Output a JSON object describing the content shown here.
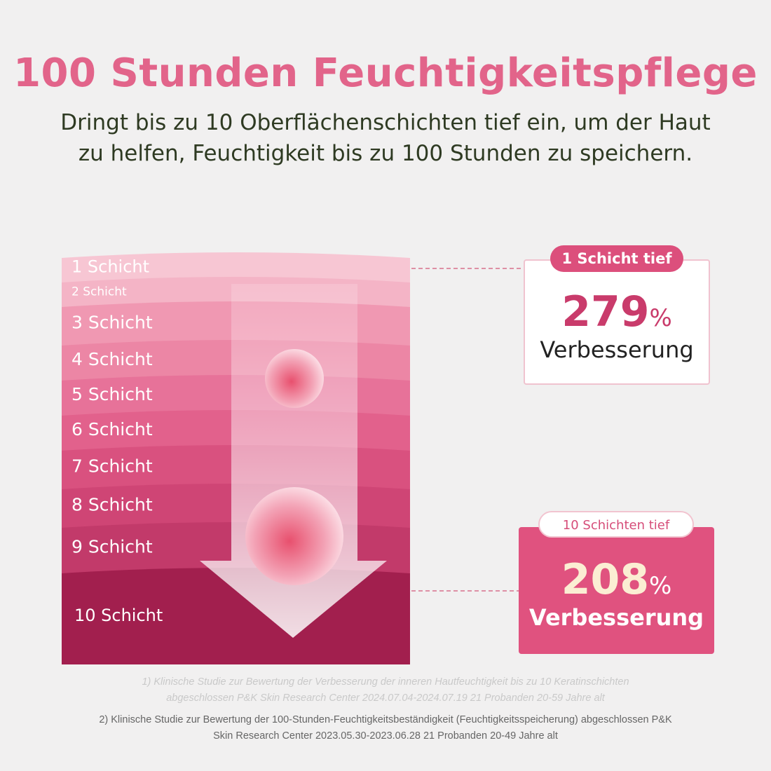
{
  "header": {
    "title": "100 Stunden Feuchtigkeitspflege",
    "subtitle": [
      "Dringt bis zu 10 Oberflächenschichten tief ein, um der Haut",
      "zu helfen, Feuchtigkeit bis zu 100 Stunden zu speichern."
    ]
  },
  "layers": [
    "1 Schicht",
    "2 Schicht",
    "3 Schicht",
    "4 Schicht",
    "5 Schicht",
    "6 Schicht",
    "7 Schicht",
    "8 Schicht",
    "9 Schicht",
    "10 Schicht"
  ],
  "cards": [
    {
      "badge": "1 Schicht tief",
      "value": "279",
      "unit": "%",
      "label": "Verbesserung"
    },
    {
      "badge": "10 Schichten tief",
      "value": "208",
      "unit": "%",
      "label": "Verbesserung"
    }
  ],
  "footnotes": [
    [
      "1) Klinische Studie zur Bewertung der Verbesserung der inneren Hautfeuchtigkeit bis zu 10 Keratinschichten",
      "abgeschlossen P&K Skin Research Center 2024.07.04-2024.07.19 21 Probanden 20-59 Jahre alt"
    ],
    [
      "2) Klinische Studie zur Bewertung der 100-Stunden-Feuchtigkeitsbeständigkeit (Feuchtigkeitsspeicherung) abgeschlossen P&K",
      "Skin Research Center 2023.05.30-2023.06.28 21 Probanden 20-49 Jahre alt"
    ]
  ]
}
